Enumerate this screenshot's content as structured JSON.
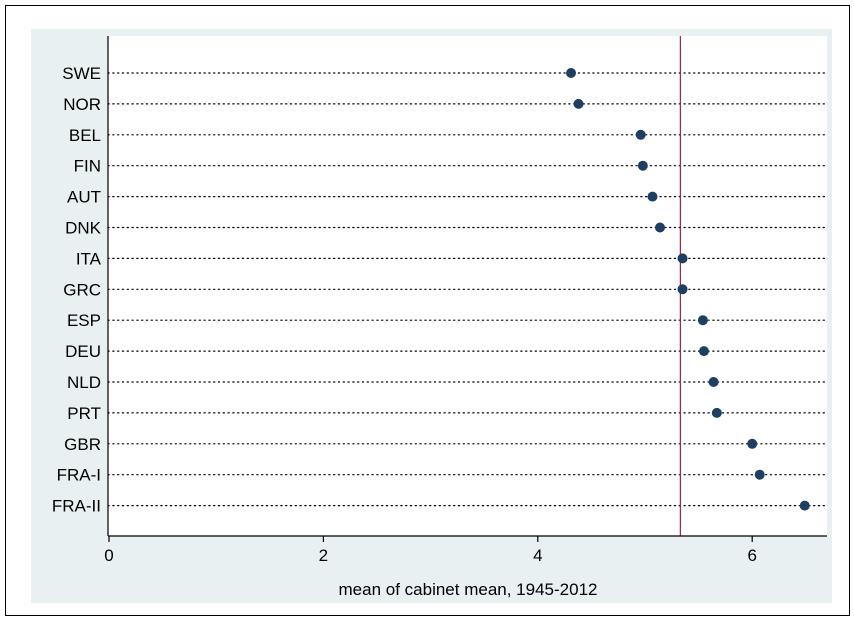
{
  "chart_data": {
    "type": "scatter",
    "orientation": "horizontal-dot",
    "xlabel": "mean of cabinet mean, 1945-2012",
    "xlim": [
      0,
      6.7
    ],
    "xticks": [
      0,
      2,
      4,
      6
    ],
    "xtick_labels": [
      "0",
      "2",
      "4",
      "6"
    ],
    "reference_line": 5.33,
    "grid": "dotted horizontal",
    "categories": [
      "SWE",
      "NOR",
      "BEL",
      "FIN",
      "AUT",
      "DNK",
      "ITA",
      "GRC",
      "ESP",
      "DEU",
      "NLD",
      "PRT",
      "GBR",
      "FRA-I",
      "FRA-II"
    ],
    "values": [
      4.31,
      4.38,
      4.96,
      4.98,
      5.07,
      5.14,
      5.35,
      5.35,
      5.54,
      5.55,
      5.64,
      5.67,
      6.0,
      6.07,
      6.49
    ]
  },
  "colors": {
    "background_panel": "#e9f0f2",
    "plot_area": "#ffffff",
    "marker": "#1f3f62",
    "reference_line": "#a3233e",
    "grid": "#000000"
  }
}
